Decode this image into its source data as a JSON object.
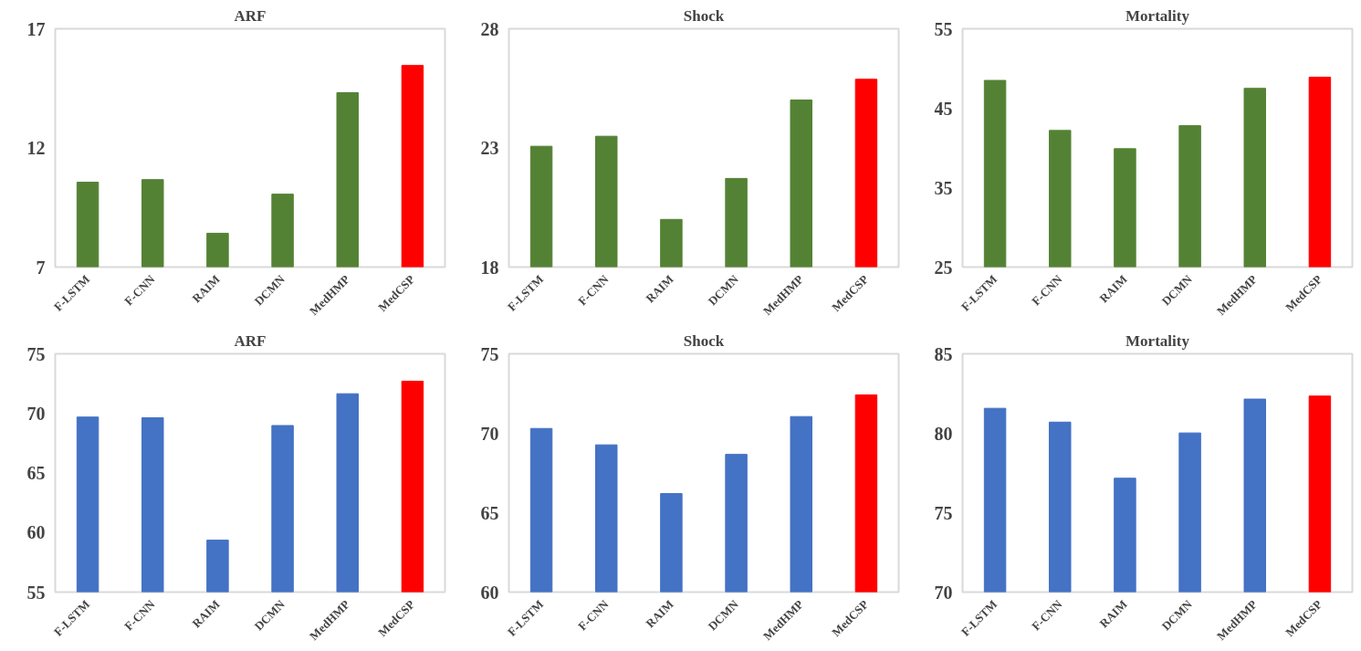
{
  "chart_data": [
    {
      "type": "bar",
      "title": "ARF",
      "categories": [
        "F-LSTM",
        "F-CNN",
        "RAIM",
        "DCMN",
        "MedHMP",
        "MedCSP"
      ],
      "values": [
        10.56,
        10.67,
        8.42,
        10.06,
        14.32,
        15.46
      ],
      "colors": [
        "#548235",
        "#548235",
        "#548235",
        "#548235",
        "#548235",
        "#ff0000"
      ],
      "ylim": [
        7,
        17
      ],
      "yticks": [
        7,
        12,
        17
      ]
    },
    {
      "type": "bar",
      "title": "Shock",
      "categories": [
        "F-LSTM",
        "F-CNN",
        "RAIM",
        "DCMN",
        "MedHMP",
        "MedCSP"
      ],
      "values": [
        23.07,
        23.49,
        20.0,
        21.72,
        25.01,
        25.88
      ],
      "colors": [
        "#548235",
        "#548235",
        "#548235",
        "#548235",
        "#548235",
        "#ff0000"
      ],
      "ylim": [
        18,
        28
      ],
      "yticks": [
        18,
        23,
        28
      ]
    },
    {
      "type": "bar",
      "title": "Mortality",
      "categories": [
        "F-LSTM",
        "F-CNN",
        "RAIM",
        "DCMN",
        "MedHMP",
        "MedCSP"
      ],
      "values": [
        48.5,
        42.2,
        39.9,
        42.8,
        47.5,
        48.9
      ],
      "colors": [
        "#548235",
        "#548235",
        "#548235",
        "#548235",
        "#548235",
        "#ff0000"
      ],
      "ylim": [
        25,
        55
      ],
      "yticks": [
        25,
        35,
        45,
        55
      ]
    },
    {
      "type": "bar",
      "title": "ARF",
      "categories": [
        "F-LSTM",
        "F-CNN",
        "RAIM",
        "DCMN",
        "MedHMP",
        "MedCSP"
      ],
      "values": [
        69.69,
        69.63,
        59.36,
        68.98,
        71.65,
        72.7
      ],
      "colors": [
        "#4472c4",
        "#4472c4",
        "#4472c4",
        "#4472c4",
        "#4472c4",
        "#ff0000"
      ],
      "ylim": [
        55,
        75
      ],
      "yticks": [
        55,
        60,
        65,
        70,
        75
      ]
    },
    {
      "type": "bar",
      "title": "Shock",
      "categories": [
        "F-LSTM",
        "F-CNN",
        "RAIM",
        "DCMN",
        "MedHMP",
        "MedCSP"
      ],
      "values": [
        70.3,
        69.27,
        66.2,
        68.67,
        71.05,
        72.41
      ],
      "colors": [
        "#4472c4",
        "#4472c4",
        "#4472c4",
        "#4472c4",
        "#4472c4",
        "#ff0000"
      ],
      "ylim": [
        60,
        75
      ],
      "yticks": [
        60,
        65,
        70,
        75
      ]
    },
    {
      "type": "bar",
      "title": "Mortality",
      "categories": [
        "F-LSTM",
        "F-CNN",
        "RAIM",
        "DCMN",
        "MedHMP",
        "MedCSP"
      ],
      "values": [
        81.57,
        80.7,
        77.17,
        80.02,
        82.15,
        82.34
      ],
      "colors": [
        "#4472c4",
        "#4472c4",
        "#4472c4",
        "#4472c4",
        "#4472c4",
        "#ff0000"
      ],
      "ylim": [
        70,
        85
      ],
      "yticks": [
        70,
        75,
        80,
        85
      ]
    }
  ]
}
